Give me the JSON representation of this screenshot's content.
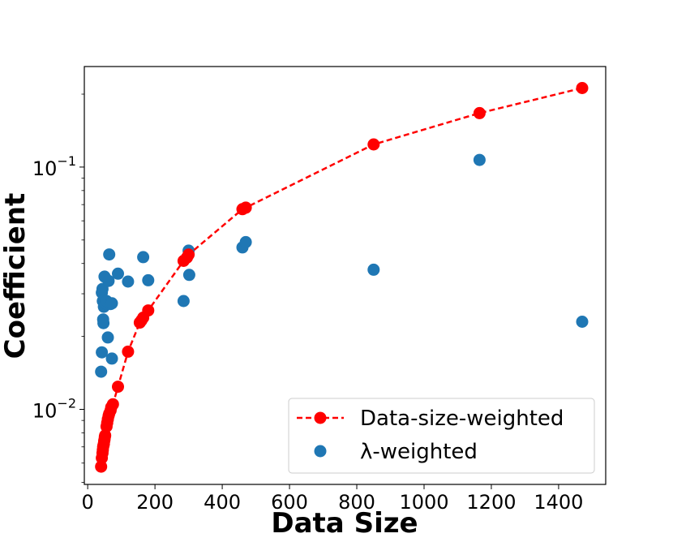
{
  "chart_data": {
    "type": "scatter",
    "xlabel": "Data Size",
    "ylabel": "Coefficient",
    "xlim": [
      -10,
      1540
    ],
    "ylim": [
      0.0049,
      0.26
    ],
    "yscale": "log",
    "grid": false,
    "legend_position": "lower-right",
    "xticks": [
      0,
      200,
      400,
      600,
      800,
      1000,
      1200,
      1400
    ],
    "xtick_labels": [
      "0",
      "200",
      "400",
      "600",
      "800",
      "1000",
      "1200",
      "1400"
    ],
    "yticks": [
      0.01,
      0.1
    ],
    "ytick_label_base": "10",
    "ytick_label_exps": [
      "−2",
      "−1"
    ],
    "series": [
      {
        "name": "Data-size-weighted",
        "style": "dashed-line-with-markers",
        "color": "#ff0000",
        "x": [
          40,
          42,
          44,
          45,
          46,
          47,
          48,
          49,
          50,
          51,
          52,
          56,
          58,
          60,
          62,
          64,
          68,
          70,
          75,
          90,
          120,
          155,
          160,
          165,
          180,
          285,
          295,
          300,
          460,
          470,
          850,
          1165,
          1470
        ],
        "y": [
          0.0058,
          0.0063,
          0.0066,
          0.0068,
          0.007,
          0.0071,
          0.0072,
          0.0074,
          0.0075,
          0.0077,
          0.0078,
          0.0085,
          0.0088,
          0.0091,
          0.0094,
          0.0096,
          0.0099,
          0.0102,
          0.0105,
          0.0124,
          0.0173,
          0.0228,
          0.0233,
          0.0239,
          0.0256,
          0.041,
          0.0423,
          0.0435,
          0.067,
          0.068,
          0.124,
          0.167,
          0.212
        ]
      },
      {
        "name": "λ-weighted",
        "style": "markers",
        "color": "#1f77b4",
        "x": [
          40,
          42,
          42,
          44,
          45,
          46,
          47,
          48,
          50,
          52,
          55,
          56,
          60,
          62,
          64,
          68,
          72,
          72,
          90,
          120,
          165,
          180,
          285,
          300,
          302,
          460,
          470,
          850,
          1165,
          1470
        ],
        "y": [
          0.0143,
          0.0172,
          0.0303,
          0.0314,
          0.028,
          0.0235,
          0.0227,
          0.0265,
          0.0353,
          0.0274,
          0.0274,
          0.028,
          0.0198,
          0.0339,
          0.0436,
          0.0272,
          0.0274,
          0.0162,
          0.0363,
          0.0337,
          0.0425,
          0.0341,
          0.028,
          0.0452,
          0.0359,
          0.0466,
          0.049,
          0.0377,
          0.107,
          0.023
        ]
      }
    ]
  }
}
